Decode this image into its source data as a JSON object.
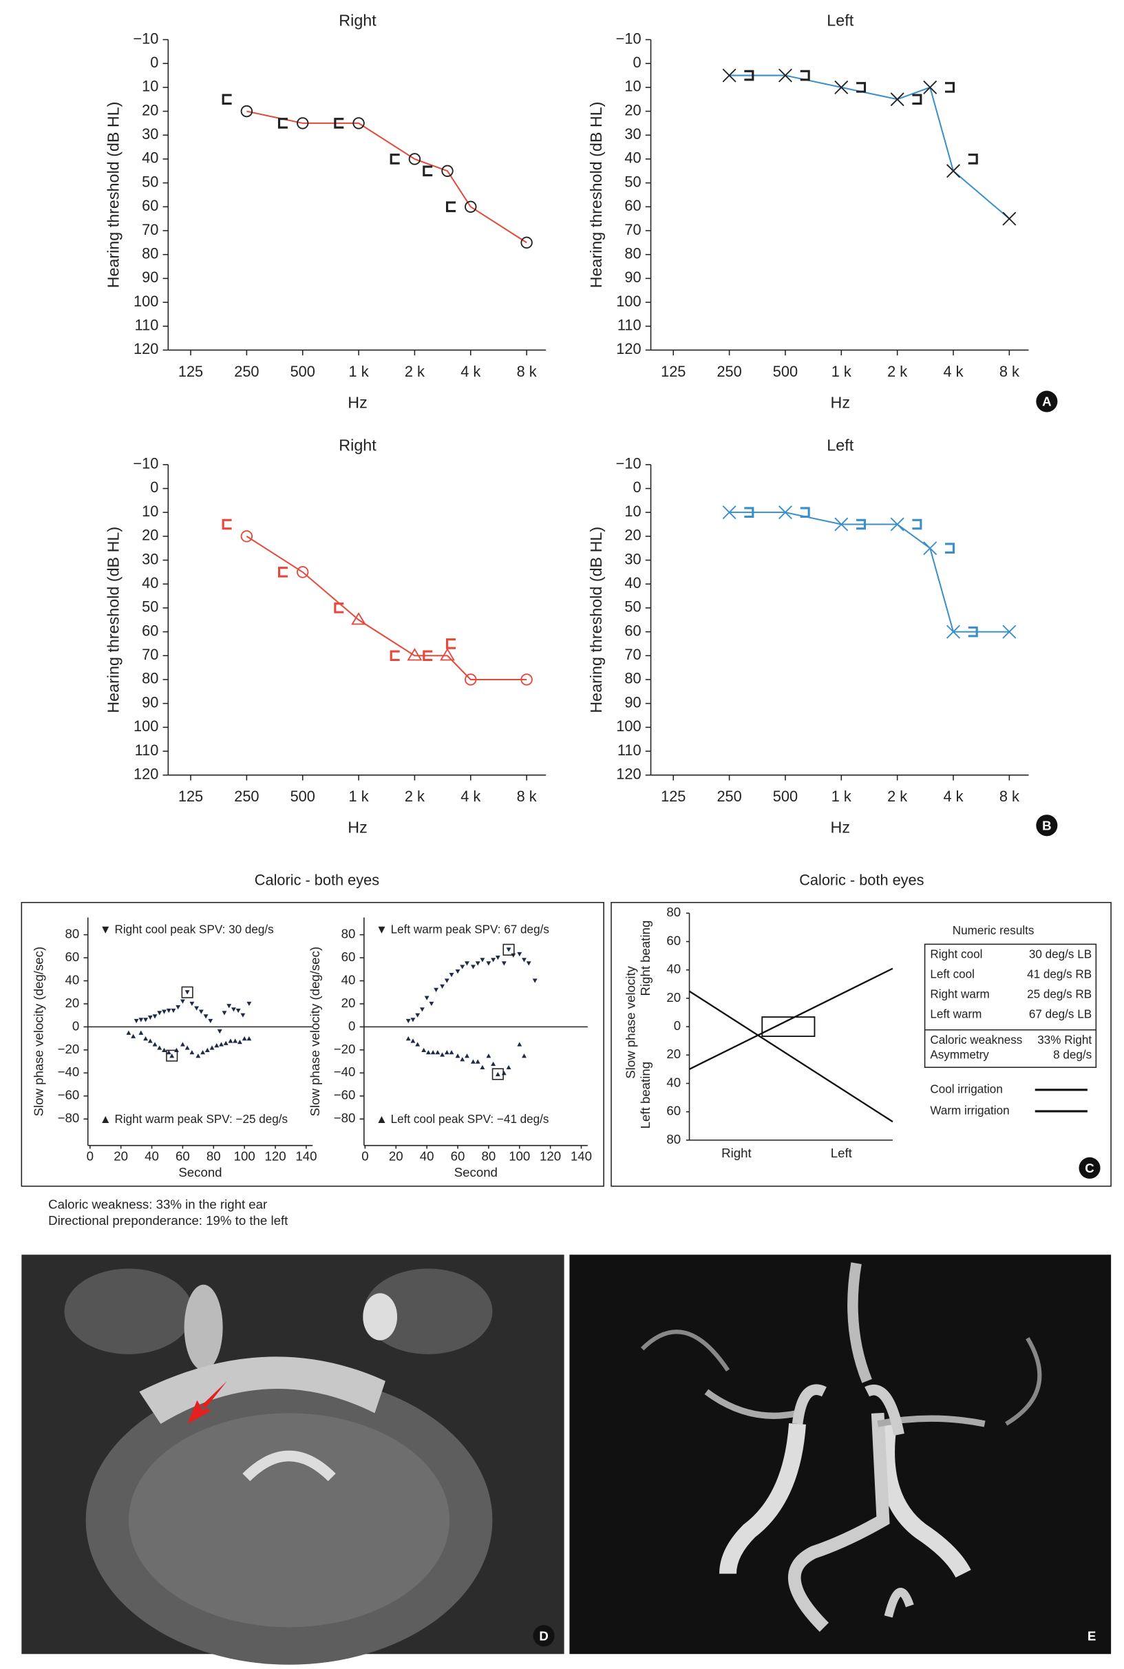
{
  "chart_data": [
    {
      "type": "line",
      "title": "Right",
      "xlabel": "Hz",
      "ylabel": "Hearing threshold (dB HL)",
      "log_x": true,
      "y_inverted": true,
      "xlim": [
        94.6,
        10160
      ],
      "ylim": [
        -10,
        120
      ],
      "xticks": [
        125,
        250,
        500,
        {
          "value": 1000,
          "label": "1 k"
        },
        {
          "value": 2000,
          "label": "2 k"
        },
        {
          "value": 4000,
          "label": "4 k"
        },
        {
          "value": 8000,
          "label": "8 k"
        }
      ],
      "yticks": [
        {
          "value": -10,
          "label": "−10"
        },
        0,
        10,
        20,
        30,
        40,
        50,
        60,
        70,
        80,
        90,
        100,
        110,
        120
      ],
      "series": [
        {
          "color": "#e8483c",
          "marker_color": "#222222",
          "marker": "circle",
          "line": true,
          "x": [
            250,
            500,
            1000,
            2000,
            3000,
            4000,
            8000
          ],
          "values": [
            20,
            25,
            25,
            40,
            45,
            60,
            75
          ]
        },
        {
          "color": "#222222",
          "marker_color": "#222222",
          "marker": "bracket-left",
          "line": false,
          "x": [
            250,
            500,
            1000,
            2000,
            3000,
            4000
          ],
          "values": [
            15,
            25,
            25,
            40,
            45,
            60
          ]
        }
      ]
    },
    {
      "type": "line",
      "title": "Left",
      "xlabel": "Hz",
      "ylabel": "Hearing threshold (dB HL)",
      "log_x": true,
      "y_inverted": true,
      "xlim": [
        94.6,
        10160
      ],
      "ylim": [
        -10,
        120
      ],
      "xticks": [
        125,
        250,
        500,
        {
          "value": 1000,
          "label": "1 k"
        },
        {
          "value": 2000,
          "label": "2 k"
        },
        {
          "value": 4000,
          "label": "4 k"
        },
        {
          "value": 8000,
          "label": "8 k"
        }
      ],
      "yticks": [
        {
          "value": -10,
          "label": "−10"
        },
        0,
        10,
        20,
        30,
        40,
        50,
        60,
        70,
        80,
        90,
        100,
        110,
        120
      ],
      "series": [
        {
          "color": "#3a8fc9",
          "marker_color": "#222222",
          "marker": "cross",
          "line": true,
          "x": [
            250,
            500,
            1000,
            2000,
            3000,
            4000,
            8000
          ],
          "values": [
            5,
            5,
            10,
            15,
            10,
            45,
            65
          ]
        },
        {
          "color": "#222222",
          "marker_color": "#222222",
          "marker": "bracket-right",
          "line": false,
          "x": [
            250,
            500,
            1000,
            2000,
            3000,
            4000
          ],
          "values": [
            5,
            5,
            10,
            15,
            10,
            40
          ]
        }
      ]
    },
    {
      "type": "line",
      "title": "Right",
      "xlabel": "Hz",
      "ylabel": "Hearing threshold (dB HL)",
      "log_x": true,
      "y_inverted": true,
      "xlim": [
        94.6,
        10160
      ],
      "ylim": [
        -10,
        120
      ],
      "xticks": [
        125,
        250,
        500,
        {
          "value": 1000,
          "label": "1 k"
        },
        {
          "value": 2000,
          "label": "2 k"
        },
        {
          "value": 4000,
          "label": "4 k"
        },
        {
          "value": 8000,
          "label": "8 k"
        }
      ],
      "yticks": [
        {
          "value": -10,
          "label": "−10"
        },
        0,
        10,
        20,
        30,
        40,
        50,
        60,
        70,
        80,
        90,
        100,
        110,
        120
      ],
      "series": [
        {
          "color": "#e8483c",
          "marker_color": "#e8483c",
          "markers": [
            "circle",
            "circle",
            "triangle",
            "triangle",
            "triangle",
            "circle",
            "circle"
          ],
          "line": true,
          "x": [
            250,
            500,
            1000,
            2000,
            3000,
            4000,
            8000
          ],
          "values": [
            20,
            35,
            55,
            70,
            70,
            80,
            80
          ]
        },
        {
          "color": "#e8483c",
          "marker_color": "#e8483c",
          "marker": "bracket-left",
          "line": false,
          "x": [
            250,
            500,
            1000,
            2000,
            3000,
            4000
          ],
          "values": [
            15,
            35,
            50,
            70,
            70,
            65
          ]
        }
      ]
    },
    {
      "type": "line",
      "title": "Left",
      "xlabel": "Hz",
      "ylabel": "Hearing threshold (dB HL)",
      "log_x": true,
      "y_inverted": true,
      "xlim": [
        94.6,
        10160
      ],
      "ylim": [
        -10,
        120
      ],
      "xticks": [
        125,
        250,
        500,
        {
          "value": 1000,
          "label": "1 k"
        },
        {
          "value": 2000,
          "label": "2 k"
        },
        {
          "value": 4000,
          "label": "4 k"
        },
        {
          "value": 8000,
          "label": "8 k"
        }
      ],
      "yticks": [
        {
          "value": -10,
          "label": "−10"
        },
        0,
        10,
        20,
        30,
        40,
        50,
        60,
        70,
        80,
        90,
        100,
        110,
        120
      ],
      "series": [
        {
          "color": "#3a8fc9",
          "marker_color": "#3a8fc9",
          "marker": "cross",
          "line": true,
          "x": [
            250,
            500,
            1000,
            2000,
            3000,
            4000,
            8000
          ],
          "values": [
            10,
            10,
            15,
            15,
            25,
            60,
            60
          ]
        },
        {
          "color": "#3a8fc9",
          "marker_color": "#3a8fc9",
          "marker": "bracket-right",
          "line": false,
          "x": [
            250,
            500,
            1000,
            2000,
            3000,
            4000
          ],
          "values": [
            10,
            10,
            15,
            15,
            25,
            60
          ]
        }
      ]
    },
    {
      "type": "scatter",
      "title": "Caloric - both eyes",
      "xlabel": "Second",
      "ylabel": "Slow phase velocity (deg/sec)",
      "xlim": [
        0,
        140
      ],
      "ylim": [
        -103,
        95
      ],
      "xticks": [
        0,
        20,
        40,
        60,
        80,
        100,
        120,
        140
      ],
      "yticks": [
        {
          "value": -80,
          "label": "−80"
        },
        {
          "value": -60,
          "label": "−60"
        },
        {
          "value": -40,
          "label": "−40"
        },
        {
          "value": -20,
          "label": "−20"
        },
        0,
        20,
        40,
        60,
        80
      ],
      "annotations": [
        "▼ Right cool peak SPV: 30 deg/s",
        "▲ Right warm peak SPV: −25 deg/s"
      ],
      "series": [
        {
          "color": "#1f2a44",
          "marker": "triangle-down",
          "x": [
            30,
            33,
            36,
            39,
            42,
            45,
            48,
            51,
            54,
            57,
            60,
            63,
            66,
            69,
            72,
            75,
            78,
            84,
            87,
            90,
            93,
            96,
            99,
            103
          ],
          "values": [
            5,
            6,
            6,
            8,
            9,
            12,
            13,
            14,
            14,
            17,
            22,
            30,
            20,
            16,
            13,
            9,
            5,
            -4,
            12,
            18,
            15,
            14,
            10,
            20
          ]
        },
        {
          "color": "#1f2a44",
          "marker": "triangle-up",
          "x": [
            25,
            28,
            33,
            36,
            39,
            42,
            45,
            48,
            51,
            53,
            56,
            60,
            63,
            66,
            70,
            73,
            76,
            79,
            82,
            85,
            88,
            91,
            94,
            97,
            100,
            103
          ],
          "values": [
            -5,
            -8,
            -5,
            -10,
            -12,
            -15,
            -18,
            -20,
            -22,
            -25,
            -20,
            -15,
            -18,
            -22,
            -25,
            -22,
            -20,
            -18,
            -16,
            -15,
            -14,
            -12,
            -12,
            -13,
            -10,
            -10
          ]
        }
      ]
    },
    {
      "type": "scatter",
      "xlabel": "Second",
      "ylabel": "Slow phase velocity (deg/sec)",
      "xlim": [
        0,
        140
      ],
      "ylim": [
        -103,
        95
      ],
      "xticks": [
        0,
        20,
        40,
        60,
        80,
        100,
        120,
        140
      ],
      "yticks": [
        {
          "value": -80,
          "label": "−80"
        },
        {
          "value": -60,
          "label": "−60"
        },
        {
          "value": -40,
          "label": "−40"
        },
        {
          "value": -20,
          "label": "−20"
        },
        0,
        20,
        40,
        60,
        80
      ],
      "annotations": [
        "▼ Left warm peak SPV: 67 deg/s",
        "▲ Left cool peak SPV: −41 deg/s"
      ],
      "series": [
        {
          "color": "#1f2a44",
          "marker": "triangle-down",
          "x": [
            28,
            31,
            34,
            37,
            40,
            43,
            46,
            50,
            53,
            56,
            60,
            63,
            66,
            70,
            73,
            76,
            80,
            83,
            86,
            90,
            93,
            96,
            100,
            103,
            106,
            110
          ],
          "values": [
            5,
            6,
            10,
            15,
            25,
            20,
            32,
            35,
            40,
            45,
            48,
            52,
            55,
            52,
            55,
            58,
            55,
            58,
            60,
            55,
            67,
            62,
            63,
            58,
            55,
            40
          ]
        },
        {
          "color": "#1f2a44",
          "marker": "triangle-up",
          "x": [
            28,
            31,
            34,
            38,
            41,
            44,
            47,
            50,
            53,
            56,
            60,
            63,
            66,
            70,
            73,
            76,
            80,
            83,
            86,
            90,
            93,
            100,
            103
          ],
          "values": [
            -10,
            -12,
            -15,
            -20,
            -22,
            -22,
            -22,
            -24,
            -22,
            -22,
            -25,
            -28,
            -25,
            -30,
            -30,
            -35,
            -25,
            -32,
            -41,
            -40,
            -35,
            -15,
            -25
          ]
        }
      ]
    },
    {
      "type": "butterfly",
      "title": "Caloric - both eyes",
      "ylabel": "Slow phase velocity",
      "ylabel_top": "Right beating",
      "ylabel_bottom": "Left beating",
      "categories": [
        "Right",
        "Left"
      ],
      "ylim": [
        -80,
        80
      ],
      "yticks": [
        {
          "value": -80,
          "label": "80"
        },
        {
          "value": -60,
          "label": "60"
        },
        {
          "value": -40,
          "label": "40"
        },
        {
          "value": -20,
          "label": "20"
        },
        0,
        20,
        40,
        60,
        80
      ],
      "series": [
        {
          "name": "Cool irrigation",
          "color": "#111111",
          "values": [
            -30,
            41
          ]
        },
        {
          "name": "Warm irrigation",
          "color": "#111111",
          "values": [
            25,
            -67
          ]
        }
      ],
      "numeric_results": {
        "title": "Numeric results",
        "rows": [
          [
            "Right cool",
            "30 deg/s LB"
          ],
          [
            "Left cool",
            "41 deg/s RB"
          ],
          [
            "Right warm",
            "25 deg/s RB"
          ],
          [
            "Left warm",
            "67 deg/s LB"
          ]
        ],
        "summary_rows": [
          [
            "Caloric weakness",
            "33% Right"
          ],
          [
            "Asymmetry",
            "8 deg/s"
          ]
        ]
      }
    }
  ],
  "captions": [
    "Caloric weakness: 33% in the right ear",
    "Directional preponderance: 19% to the left"
  ],
  "panel_labels": [
    "A",
    "B",
    "C",
    "D",
    "E"
  ]
}
